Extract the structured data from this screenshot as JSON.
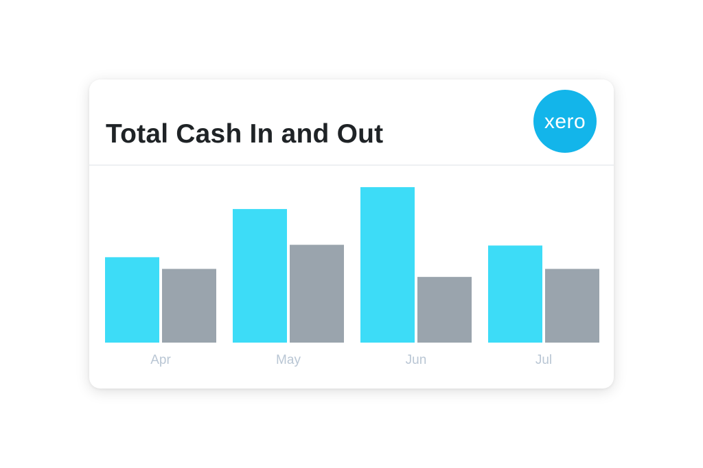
{
  "card": {
    "title": "Total Cash In and Out",
    "logo_text": "xero",
    "logo_icon": "xero-logo-icon"
  },
  "colors": {
    "cash_in": "#3ddcf7",
    "cash_out": "#9aa4ad",
    "logo_bg": "#13b5ea",
    "tick_label": "#b9c6d4"
  },
  "chart_data": {
    "type": "bar",
    "categories": [
      "Apr",
      "May",
      "Jun",
      "Jul"
    ],
    "series": [
      {
        "color": "#3ddcf7",
        "values": [
          117,
          183,
          213,
          133
        ]
      },
      {
        "color": "#9aa4ad",
        "values": [
          101,
          134,
          90,
          101
        ]
      }
    ],
    "ylim": [
      0,
      230
    ],
    "grid": false,
    "legend": "none"
  }
}
